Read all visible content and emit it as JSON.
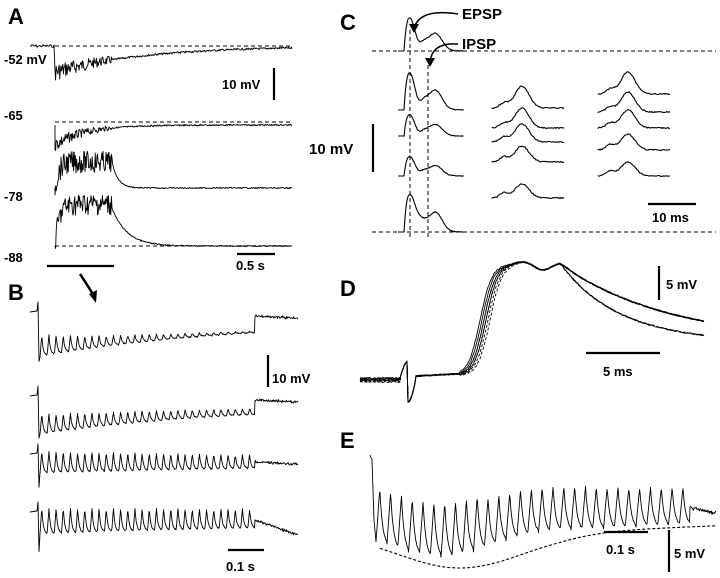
{
  "chart_data": [
    {
      "panel": "A",
      "type": "line",
      "traces": [
        {
          "label": "-52 mV"
        },
        {
          "label": "-65"
        },
        {
          "label": "-78"
        },
        {
          "label": "-88"
        }
      ],
      "scale_bars": {
        "voltage": "10 mV",
        "time": "0.5 s"
      }
    },
    {
      "panel": "B",
      "type": "line",
      "traces": 4,
      "pulses_per_trace": 30,
      "scale_bars": {
        "voltage": "10 mV",
        "time": "0.1 s"
      }
    },
    {
      "panel": "C",
      "type": "line",
      "annotations": [
        "EPSP",
        "IPSP"
      ],
      "scale_bars": {
        "voltage": "10 mV",
        "time": "10 ms"
      }
    },
    {
      "panel": "D",
      "type": "line",
      "series": [
        {
          "style": "solid"
        },
        {
          "style": "dashed"
        }
      ],
      "scale_bars": {
        "voltage": "5 mV",
        "time": "5 ms"
      }
    },
    {
      "panel": "E",
      "type": "line",
      "series": [
        {
          "style": "solid"
        },
        {
          "style": "dashed"
        }
      ],
      "scale_bars": {
        "voltage": "5 mV",
        "time": "0.1 s"
      }
    }
  ],
  "panels": {
    "a": {
      "letter": "A",
      "labels": [
        "-52 mV",
        "-65",
        "-78",
        "-88"
      ],
      "vbar": "10 mV",
      "tbar": "0.5 s"
    },
    "b": {
      "letter": "B",
      "vbar": "10 mV",
      "tbar": "0.1 s"
    },
    "c": {
      "letter": "C",
      "epsp": "EPSP",
      "ipsp": "IPSP",
      "vbar": "10 mV",
      "tbar": "10 ms"
    },
    "d": {
      "letter": "D",
      "vbar": "5 mV",
      "tbar": "5 ms"
    },
    "e": {
      "letter": "E",
      "vbar": "5 mV",
      "tbar": "0.1 s"
    }
  }
}
